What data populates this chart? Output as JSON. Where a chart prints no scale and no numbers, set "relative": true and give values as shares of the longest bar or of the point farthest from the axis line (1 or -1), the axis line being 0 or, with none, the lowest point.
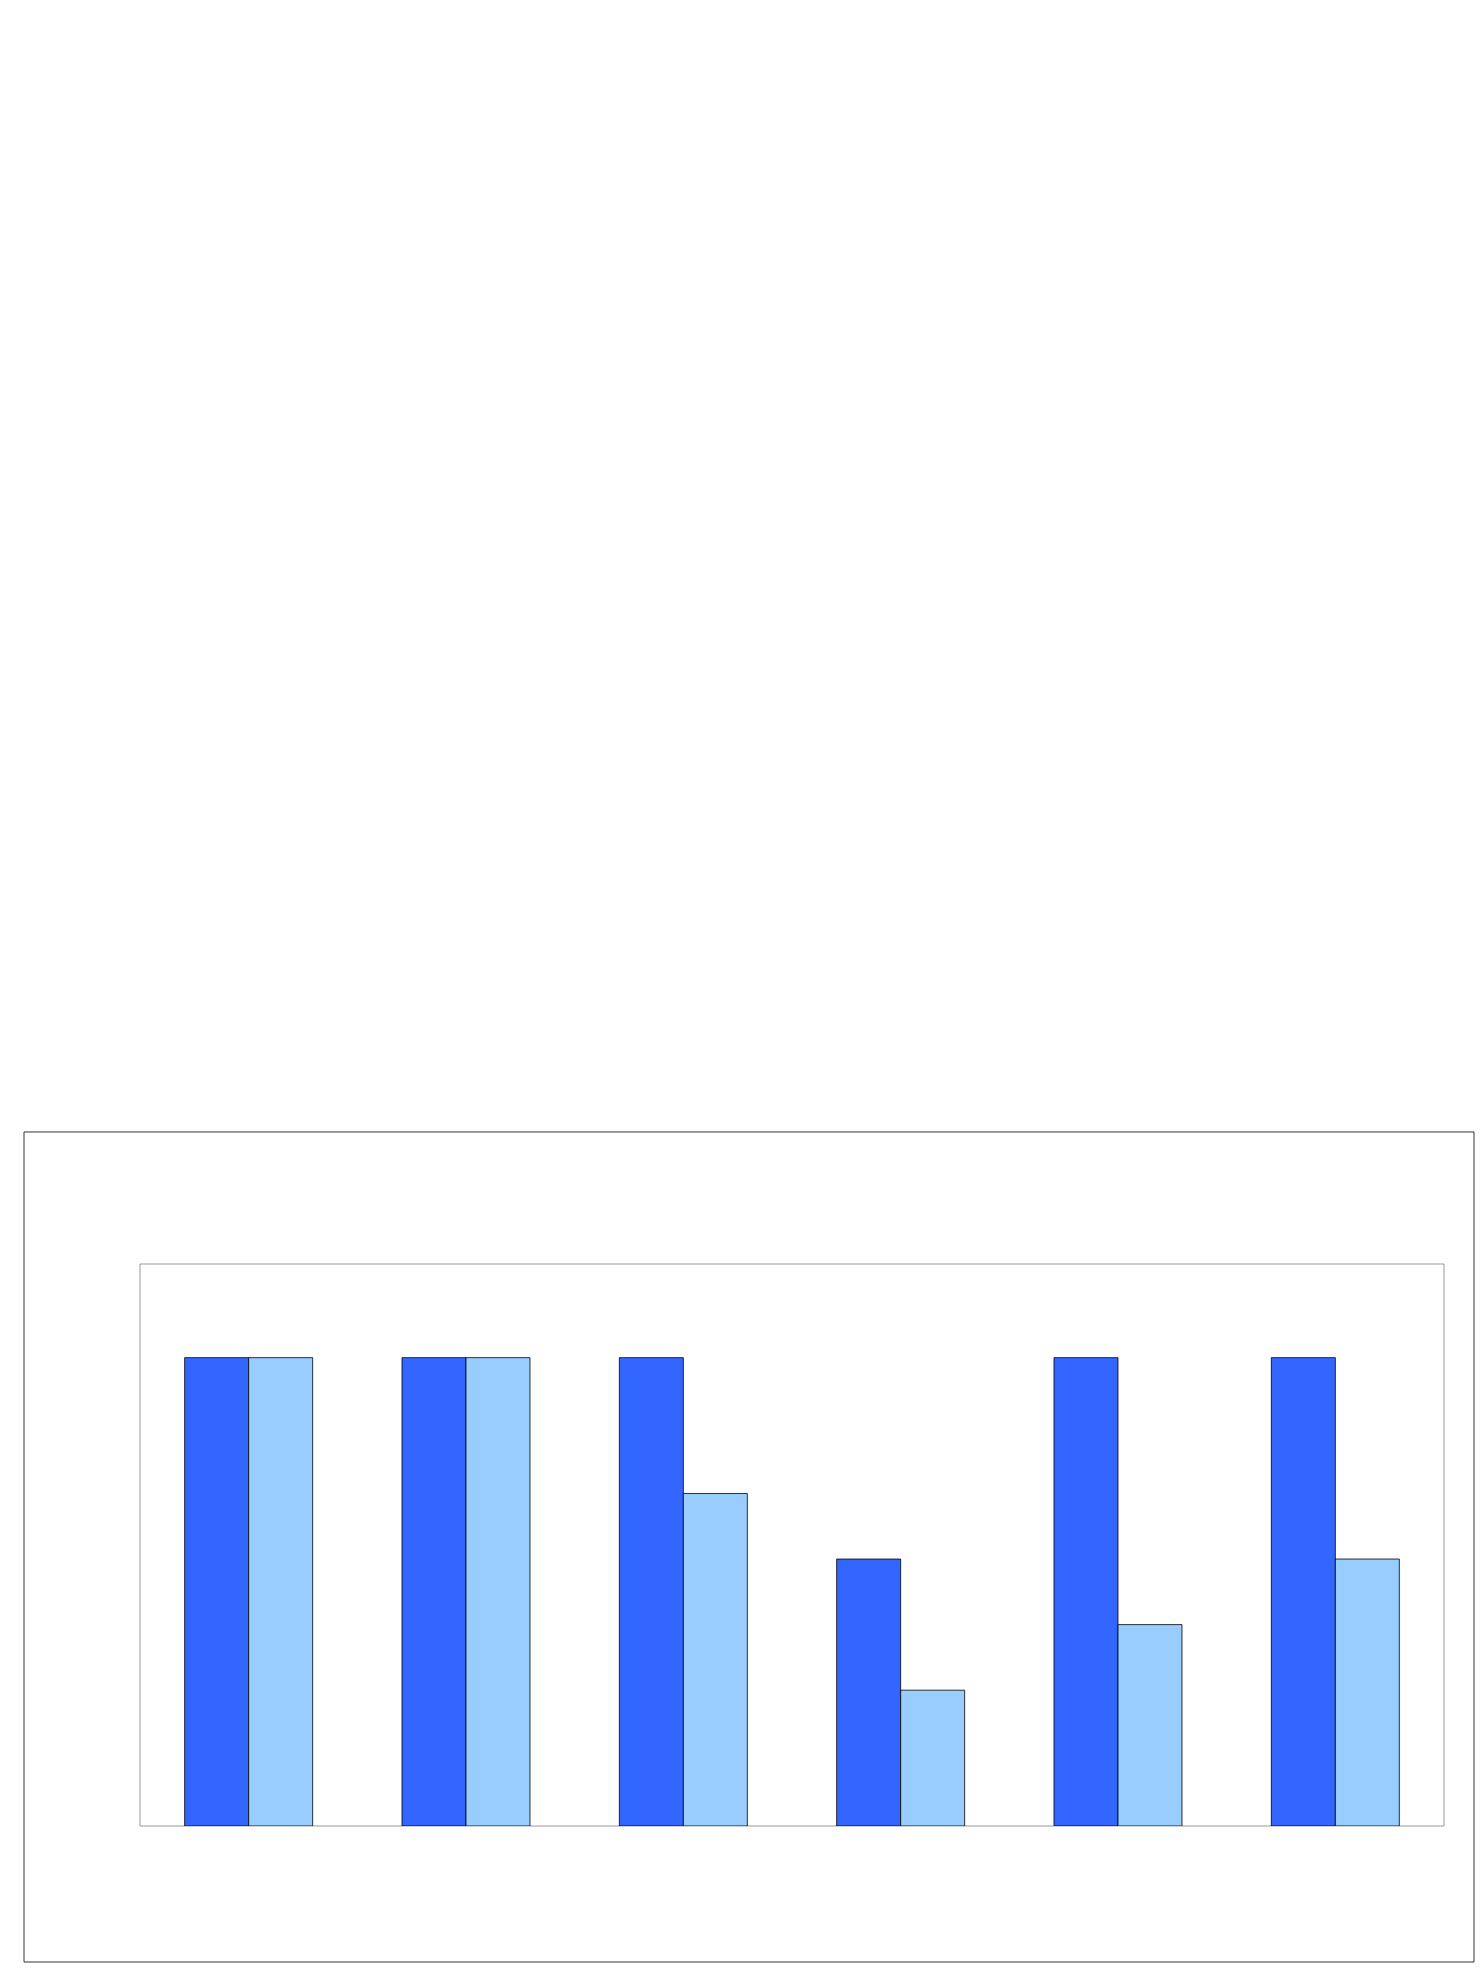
{
  "chart_data": {
    "type": "bar",
    "relative": true,
    "categories": [
      null,
      null,
      null,
      null,
      null,
      null
    ],
    "series": [
      {
        "color": "#3366ff",
        "values": [
          1,
          1,
          1,
          0.57,
          1,
          1
        ]
      },
      {
        "color": "#99ccff",
        "values": [
          1,
          1,
          0.71,
          0.29,
          0.43,
          0.57
        ]
      }
    ]
  }
}
